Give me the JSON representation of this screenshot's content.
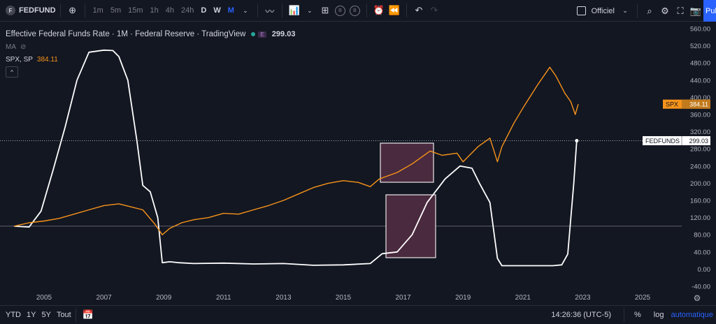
{
  "toolbar": {
    "symbol_icon": "F",
    "symbol": "FEDFUND",
    "intervals": [
      {
        "label": "1m",
        "state": "dim"
      },
      {
        "label": "5m",
        "state": "dim"
      },
      {
        "label": "15m",
        "state": "dim"
      },
      {
        "label": "1h",
        "state": "dim"
      },
      {
        "label": "4h",
        "state": "dim"
      },
      {
        "label": "24h",
        "state": "dim"
      },
      {
        "label": "D",
        "state": "act"
      },
      {
        "label": "W",
        "state": "act"
      },
      {
        "label": "M",
        "state": "sel"
      }
    ],
    "circle_b_1": "B",
    "circle_b_2": "B",
    "mode": "Officiel",
    "publish_label": "Publier"
  },
  "legend": {
    "title": "Effective Federal Funds Rate · 1M · Federal Reserve · TradingView",
    "badge": "E",
    "value": "299.03",
    "ma_label": "MA",
    "spx_label": "SPX, SP",
    "spx_value": "384.11",
    "collapse": "^"
  },
  "colors": {
    "background": "#131722",
    "fedfunds": "#ffffff",
    "spx": "#f7931a",
    "highlight_fill": "#4a2a3e",
    "highlight_stroke": "#e8e8e8",
    "accent": "#2962ff"
  },
  "bottom": {
    "ranges": [
      "YTD",
      "1Y",
      "5Y",
      "Tout"
    ],
    "time": "14:26:36 (UTC-5)",
    "percent": "%",
    "log": "log",
    "auto": "automatique"
  },
  "chart_data": {
    "type": "line",
    "x_ticks": [
      "2005",
      "2007",
      "2009",
      "2011",
      "2013",
      "2015",
      "2017",
      "2019",
      "2021",
      "2023",
      "2025"
    ],
    "y_ticks": [
      "560.00",
      "520.00",
      "480.00",
      "440.00",
      "400.00",
      "360.00",
      "320.00",
      "280.00",
      "240.00",
      "200.00",
      "160.00",
      "120.00",
      "80.00",
      "40.00",
      "0.00",
      "-40.00"
    ],
    "ylim": [
      -40,
      560
    ],
    "reference_level": 100,
    "fedfunds_level": 299.03,
    "fedfunds_price_label": "FEDFUNDS",
    "fedfunds_price_value": "299.03",
    "spx_price_label": "SPX",
    "spx_price_value": "384.11",
    "series": [
      {
        "name": "FEDFUNDS",
        "x": [
          2004.0,
          2004.5,
          2004.9,
          2005.3,
          2005.7,
          2006.1,
          2006.5,
          2007.0,
          2007.3,
          2007.5,
          2007.8,
          2008.1,
          2008.3,
          2008.55,
          2008.8,
          2008.95,
          2009.2,
          2009.5,
          2010.0,
          2011.0,
          2012.0,
          2013.0,
          2014.0,
          2015.0,
          2015.9,
          2016.3,
          2016.8,
          2017.3,
          2017.8,
          2018.4,
          2018.9,
          2019.3,
          2019.55,
          2019.9,
          2020.15,
          2020.3,
          2021.0,
          2022.0,
          2022.3,
          2022.5,
          2022.7,
          2022.8
        ],
        "y": [
          100,
          98,
          135,
          230,
          330,
          440,
          505,
          510,
          509,
          495,
          440,
          300,
          195,
          180,
          120,
          15,
          17,
          15,
          13,
          14,
          12,
          13,
          9,
          10,
          13,
          36,
          40,
          80,
          155,
          210,
          240,
          235,
          200,
          155,
          25,
          8,
          8,
          8,
          10,
          35,
          200,
          299
        ]
      },
      {
        "name": "SPX, SP",
        "x": [
          2004.0,
          2004.5,
          2005.0,
          2005.5,
          2006.0,
          2006.5,
          2007.0,
          2007.5,
          2007.9,
          2008.3,
          2008.7,
          2008.95,
          2009.2,
          2009.6,
          2010.0,
          2010.5,
          2011.0,
          2011.5,
          2012.0,
          2012.5,
          2013.0,
          2013.5,
          2014.0,
          2014.5,
          2015.0,
          2015.5,
          2015.9,
          2016.2,
          2016.8,
          2017.3,
          2017.9,
          2018.3,
          2018.8,
          2019.0,
          2019.5,
          2019.9,
          2020.15,
          2020.3,
          2020.7,
          2021.0,
          2021.5,
          2021.9,
          2022.1,
          2022.4,
          2022.6,
          2022.75,
          2022.85
        ],
        "y": [
          100,
          108,
          112,
          118,
          128,
          138,
          148,
          152,
          145,
          138,
          105,
          80,
          95,
          108,
          115,
          120,
          130,
          128,
          138,
          148,
          160,
          175,
          190,
          200,
          206,
          202,
          192,
          210,
          225,
          245,
          275,
          265,
          270,
          250,
          285,
          305,
          250,
          285,
          340,
          375,
          430,
          470,
          450,
          410,
          390,
          360,
          384
        ]
      }
    ]
  }
}
